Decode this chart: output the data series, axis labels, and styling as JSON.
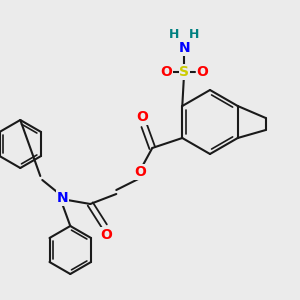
{
  "bg_color": "#ebebeb",
  "bond_color": "#1a1a1a",
  "colors": {
    "O": "#ff0000",
    "N": "#0000ff",
    "S": "#cccc00",
    "NH2_H": "#008080",
    "C": "#1a1a1a"
  }
}
